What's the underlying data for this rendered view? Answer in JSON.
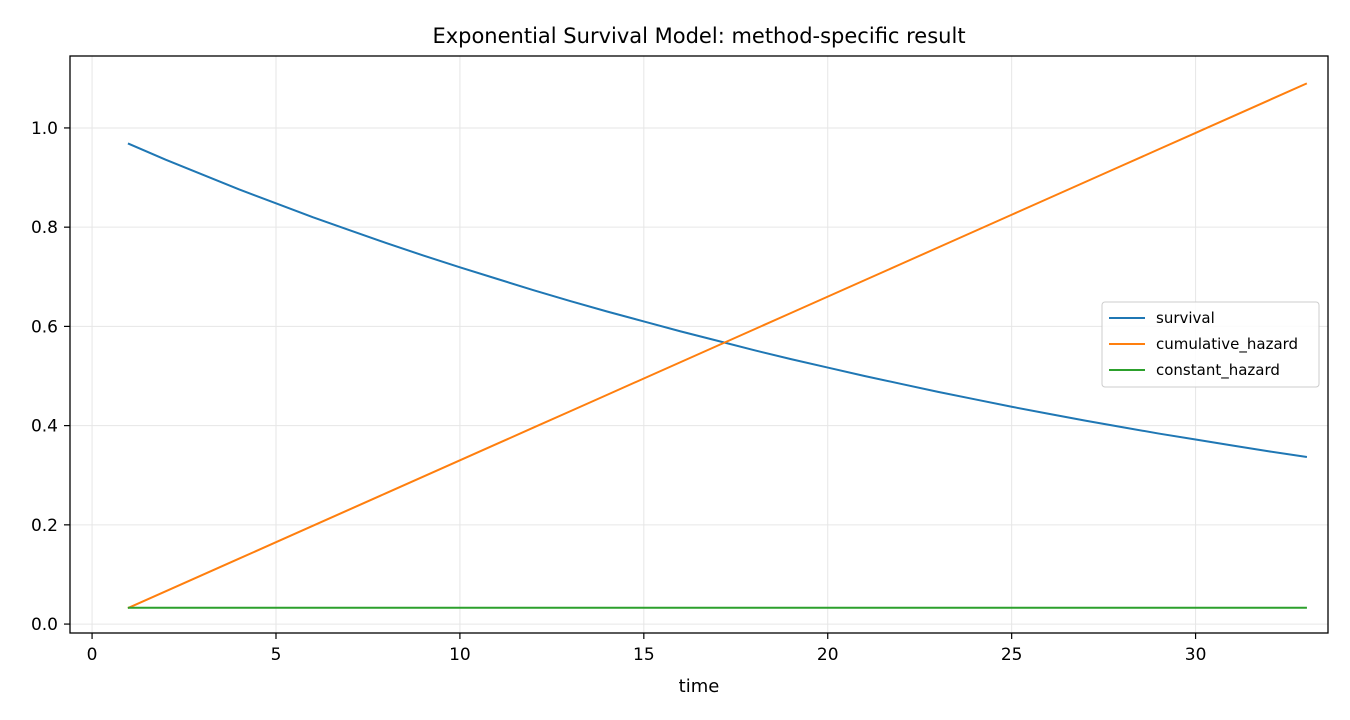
{
  "chart_data": {
    "type": "line",
    "title": "Exponential Survival Model: method-specific result",
    "xlabel": "time",
    "ylabel": "",
    "xlim": [
      -0.6,
      33.6
    ],
    "ylim": [
      -0.018,
      1.145
    ],
    "xticks": [
      0,
      5,
      10,
      15,
      20,
      25,
      30
    ],
    "yticks": [
      0.0,
      0.2,
      0.4,
      0.6,
      0.8,
      1.0
    ],
    "ytick_labels": [
      "0.0",
      "0.2",
      "0.4",
      "0.6",
      "0.8",
      "1.0"
    ],
    "grid": true,
    "legend_position": "center-right",
    "hazard_rate": 0.033,
    "x": [
      1,
      2,
      3,
      4,
      5,
      6,
      7,
      8,
      9,
      10,
      11,
      12,
      13,
      14,
      15,
      16,
      17,
      18,
      19,
      20,
      21,
      22,
      23,
      24,
      25,
      26,
      27,
      28,
      29,
      30,
      31,
      32,
      33
    ],
    "series": [
      {
        "name": "survival",
        "color": "#1f77b4",
        "values": [
          0.968,
          0.936,
          0.906,
          0.876,
          0.848,
          0.82,
          0.794,
          0.768,
          0.743,
          0.719,
          0.696,
          0.673,
          0.651,
          0.63,
          0.61,
          0.59,
          0.571,
          0.552,
          0.534,
          0.517,
          0.5,
          0.484,
          0.468,
          0.453,
          0.438,
          0.424,
          0.41,
          0.397,
          0.384,
          0.372,
          0.36,
          0.348,
          0.337
        ]
      },
      {
        "name": "cumulative_hazard",
        "color": "#ff7f0e",
        "values": [
          0.033,
          0.066,
          0.099,
          0.132,
          0.165,
          0.198,
          0.231,
          0.264,
          0.297,
          0.33,
          0.363,
          0.396,
          0.429,
          0.462,
          0.495,
          0.528,
          0.561,
          0.594,
          0.627,
          0.66,
          0.693,
          0.726,
          0.759,
          0.792,
          0.825,
          0.858,
          0.891,
          0.924,
          0.957,
          0.99,
          1.023,
          1.056,
          1.089
        ]
      },
      {
        "name": "constant_hazard",
        "color": "#2ca02c",
        "values": [
          0.033,
          0.033,
          0.033,
          0.033,
          0.033,
          0.033,
          0.033,
          0.033,
          0.033,
          0.033,
          0.033,
          0.033,
          0.033,
          0.033,
          0.033,
          0.033,
          0.033,
          0.033,
          0.033,
          0.033,
          0.033,
          0.033,
          0.033,
          0.033,
          0.033,
          0.033,
          0.033,
          0.033,
          0.033,
          0.033,
          0.033,
          0.033,
          0.033
        ]
      }
    ]
  }
}
